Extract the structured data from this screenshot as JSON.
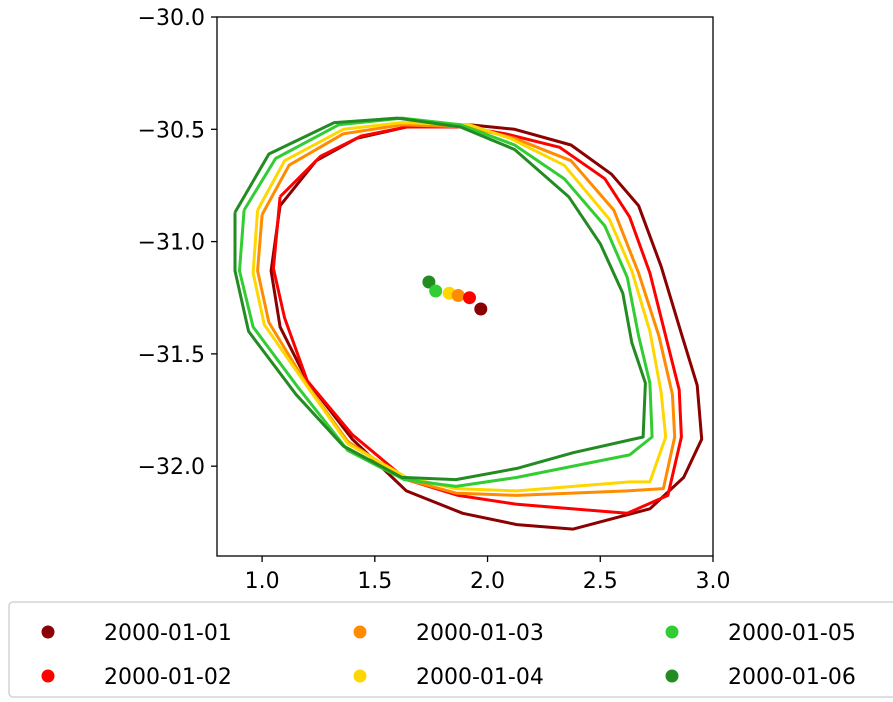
{
  "chart_data": {
    "type": "line",
    "title": "",
    "xlabel": "",
    "ylabel": "",
    "xlim": [
      0.8,
      3.0
    ],
    "ylim": [
      -32.4,
      -30.0
    ],
    "xticks": [
      "1.0",
      "1.5",
      "2.0",
      "2.5",
      "3.0"
    ],
    "yticks": [
      "−30.0",
      "−30.5",
      "−31.0",
      "−31.5",
      "−32.0"
    ],
    "grid": false,
    "legend_position": "bottom",
    "series": [
      {
        "name": "2000-01-01",
        "color": "#8b0000",
        "center": [
          1.97,
          -31.3
        ],
        "outline": [
          [
            1.08,
            -30.84
          ],
          [
            1.24,
            -30.64
          ],
          [
            1.42,
            -30.54
          ],
          [
            1.64,
            -30.49
          ],
          [
            1.92,
            -30.48
          ],
          [
            2.12,
            -30.5
          ],
          [
            2.37,
            -30.57
          ],
          [
            2.55,
            -30.7
          ],
          [
            2.67,
            -30.84
          ],
          [
            2.77,
            -31.11
          ],
          [
            2.86,
            -31.41
          ],
          [
            2.93,
            -31.64
          ],
          [
            2.95,
            -31.88
          ],
          [
            2.87,
            -32.05
          ],
          [
            2.72,
            -32.19
          ],
          [
            2.38,
            -32.28
          ],
          [
            2.13,
            -32.26
          ],
          [
            1.89,
            -32.21
          ],
          [
            1.64,
            -32.11
          ],
          [
            1.4,
            -31.88
          ],
          [
            1.2,
            -31.62
          ],
          [
            1.08,
            -31.38
          ],
          [
            1.04,
            -31.13
          ],
          [
            1.08,
            -30.84
          ]
        ]
      },
      {
        "name": "2000-01-02",
        "color": "#ff0000",
        "center": [
          1.92,
          -31.25
        ],
        "outline": [
          [
            1.08,
            -30.8
          ],
          [
            1.26,
            -30.62
          ],
          [
            1.44,
            -30.53
          ],
          [
            1.64,
            -30.49
          ],
          [
            1.9,
            -30.49
          ],
          [
            2.08,
            -30.52
          ],
          [
            2.32,
            -30.58
          ],
          [
            2.52,
            -30.72
          ],
          [
            2.63,
            -30.89
          ],
          [
            2.72,
            -31.14
          ],
          [
            2.8,
            -31.46
          ],
          [
            2.85,
            -31.66
          ],
          [
            2.86,
            -31.87
          ],
          [
            2.8,
            -32.13
          ],
          [
            2.62,
            -32.21
          ],
          [
            2.13,
            -32.17
          ],
          [
            1.87,
            -32.13
          ],
          [
            1.64,
            -32.06
          ],
          [
            1.4,
            -31.86
          ],
          [
            1.2,
            -31.62
          ],
          [
            1.1,
            -31.34
          ],
          [
            1.05,
            -31.12
          ],
          [
            1.08,
            -30.8
          ]
        ]
      },
      {
        "name": "2000-01-03",
        "color": "#ff8c00",
        "center": [
          1.87,
          -31.24
        ],
        "outline": [
          [
            1.0,
            -30.88
          ],
          [
            1.12,
            -30.66
          ],
          [
            1.36,
            -30.52
          ],
          [
            1.62,
            -30.48
          ],
          [
            1.92,
            -30.49
          ],
          [
            2.12,
            -30.54
          ],
          [
            2.37,
            -30.64
          ],
          [
            2.56,
            -30.86
          ],
          [
            2.67,
            -31.14
          ],
          [
            2.76,
            -31.42
          ],
          [
            2.82,
            -31.68
          ],
          [
            2.83,
            -31.87
          ],
          [
            2.78,
            -32.1
          ],
          [
            2.62,
            -32.11
          ],
          [
            2.13,
            -32.13
          ],
          [
            1.86,
            -32.12
          ],
          [
            1.64,
            -32.06
          ],
          [
            1.38,
            -31.89
          ],
          [
            1.2,
            -31.64
          ],
          [
            1.03,
            -31.36
          ],
          [
            0.98,
            -31.13
          ],
          [
            1.0,
            -30.88
          ]
        ]
      },
      {
        "name": "2000-01-04",
        "color": "#ffd700",
        "center": [
          1.83,
          -31.23
        ],
        "outline": [
          [
            0.98,
            -30.86
          ],
          [
            1.1,
            -30.64
          ],
          [
            1.36,
            -30.5
          ],
          [
            1.62,
            -30.47
          ],
          [
            1.92,
            -30.48
          ],
          [
            2.1,
            -30.54
          ],
          [
            2.34,
            -30.66
          ],
          [
            2.54,
            -30.9
          ],
          [
            2.64,
            -31.13
          ],
          [
            2.72,
            -31.4
          ],
          [
            2.77,
            -31.67
          ],
          [
            2.79,
            -31.87
          ],
          [
            2.72,
            -32.07
          ],
          [
            2.63,
            -32.07
          ],
          [
            2.13,
            -32.11
          ],
          [
            1.86,
            -32.1
          ],
          [
            1.64,
            -32.05
          ],
          [
            1.38,
            -31.9
          ],
          [
            1.19,
            -31.63
          ],
          [
            1.01,
            -31.37
          ],
          [
            0.96,
            -31.14
          ],
          [
            0.98,
            -30.86
          ]
        ]
      },
      {
        "name": "2000-01-05",
        "color": "#32cd32",
        "center": [
          1.77,
          -31.22
        ],
        "outline": [
          [
            0.92,
            -30.86
          ],
          [
            1.06,
            -30.63
          ],
          [
            1.34,
            -30.48
          ],
          [
            1.62,
            -30.45
          ],
          [
            1.88,
            -30.48
          ],
          [
            2.12,
            -30.57
          ],
          [
            2.34,
            -30.72
          ],
          [
            2.52,
            -30.93
          ],
          [
            2.62,
            -31.16
          ],
          [
            2.67,
            -31.42
          ],
          [
            2.72,
            -31.63
          ],
          [
            2.73,
            -31.87
          ],
          [
            2.63,
            -31.95
          ],
          [
            2.13,
            -32.05
          ],
          [
            1.86,
            -32.09
          ],
          [
            1.63,
            -32.06
          ],
          [
            1.38,
            -31.93
          ],
          [
            1.16,
            -31.65
          ],
          [
            0.96,
            -31.38
          ],
          [
            0.9,
            -31.13
          ],
          [
            0.92,
            -30.86
          ]
        ]
      },
      {
        "name": "2000-01-06",
        "color": "#228b22",
        "center": [
          1.74,
          -31.18
        ],
        "outline": [
          [
            0.88,
            -30.87
          ],
          [
            1.03,
            -30.61
          ],
          [
            1.32,
            -30.47
          ],
          [
            1.6,
            -30.45
          ],
          [
            1.88,
            -30.49
          ],
          [
            2.12,
            -30.59
          ],
          [
            2.36,
            -30.8
          ],
          [
            2.5,
            -31.01
          ],
          [
            2.6,
            -31.23
          ],
          [
            2.64,
            -31.45
          ],
          [
            2.7,
            -31.63
          ],
          [
            2.69,
            -31.87
          ],
          [
            2.38,
            -31.94
          ],
          [
            2.13,
            -32.01
          ],
          [
            1.86,
            -32.06
          ],
          [
            1.62,
            -32.05
          ],
          [
            1.36,
            -31.91
          ],
          [
            1.15,
            -31.68
          ],
          [
            0.94,
            -31.4
          ],
          [
            0.88,
            -31.13
          ],
          [
            0.88,
            -30.87
          ]
        ]
      }
    ]
  }
}
